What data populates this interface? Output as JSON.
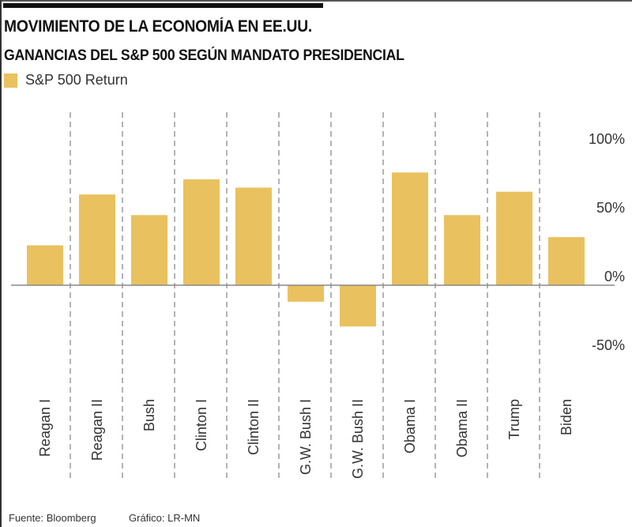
{
  "header": {
    "title": "MOVIMIENTO DE LA ECONOMÍA EN EE.UU.",
    "subtitle": "GANANCIAS DEL S&P 500 SEGÚN MANDATO PRESIDENCIAL"
  },
  "colors": {
    "bar": "#e9c15f",
    "baseline": "#888888",
    "divider": "#8a8a8a"
  },
  "chart_data": {
    "type": "bar",
    "title": "GANANCIAS DEL S&P 500 SEGÚN MANDATO PRESIDENCIAL",
    "xlabel": "",
    "ylabel": "",
    "legend": {
      "entries": [
        "S&P 500 Return"
      ],
      "placement": "top-left"
    },
    "categories": [
      "Reagan I",
      "Reagan II",
      "Bush",
      "Clinton I",
      "Clinton II",
      "G.W. Bush I",
      "G.W. Bush II",
      "Obama I",
      "Obama II",
      "Trump",
      "Biden"
    ],
    "series": [
      {
        "name": "S&P 500 Return",
        "values": [
          29,
          66,
          51,
          77,
          71,
          -12,
          -30,
          82,
          51,
          68,
          35
        ]
      }
    ],
    "y_ticks": [
      100,
      50,
      0,
      -50
    ],
    "y_tick_labels": [
      "100%",
      "50%",
      "0%",
      "-50%"
    ],
    "ylim": [
      -50,
      110
    ],
    "grid": false,
    "unit": "%"
  },
  "footer": {
    "source": "Fuente: Bloomberg",
    "credit": "Gráfico: LR-MN"
  }
}
